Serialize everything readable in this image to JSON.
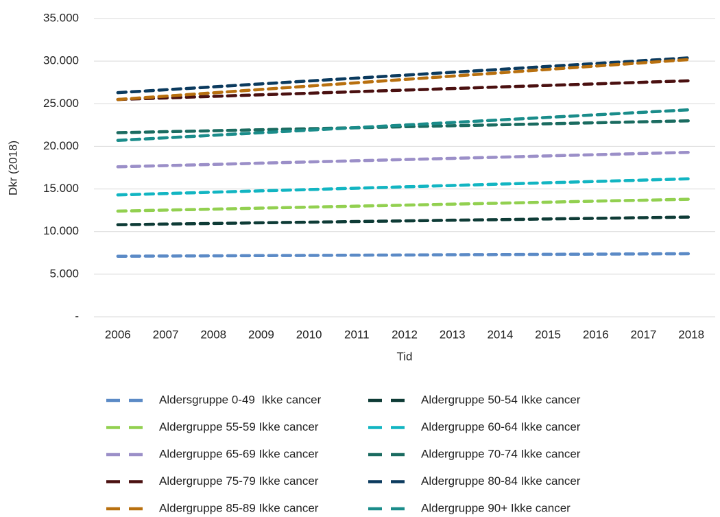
{
  "chart_data": {
    "type": "line",
    "x_label": "Tid",
    "y_label": "Dkr (2018)",
    "categories": [
      "2006",
      "2007",
      "2008",
      "2009",
      "2010",
      "2011",
      "2012",
      "2013",
      "2014",
      "2015",
      "2016",
      "2017",
      "2018"
    ],
    "ylim": [
      0,
      35000
    ],
    "yticks": [
      {
        "value": 0,
        "label": "-"
      },
      {
        "value": 5000,
        "label": "5.000"
      },
      {
        "value": 10000,
        "label": "10.000"
      },
      {
        "value": 15000,
        "label": "15.000"
      },
      {
        "value": 20000,
        "label": "20.000"
      },
      {
        "value": 25000,
        "label": "25.000"
      },
      {
        "value": 30000,
        "label": "30.000"
      },
      {
        "value": 35000,
        "label": "35.000"
      }
    ],
    "grid": true,
    "legend": "bottom",
    "line_style": "dashed",
    "series": [
      {
        "name": "Aldersgruppe 0-49  Ikke cancer",
        "color": "#5b8ac6",
        "values": [
          7100,
          7130,
          7150,
          7180,
          7200,
          7230,
          7250,
          7280,
          7300,
          7330,
          7350,
          7380,
          7400
        ]
      },
      {
        "name": "Aldergruppe 50-54 Ikke cancer",
        "color": "#0e3b36",
        "values": [
          10800,
          10880,
          10950,
          11030,
          11100,
          11180,
          11250,
          11330,
          11400,
          11480,
          11550,
          11630,
          11700
        ]
      },
      {
        "name": "Aldergruppe 55-59 Ikke cancer",
        "color": "#92d050",
        "values": [
          12400,
          12520,
          12630,
          12750,
          12870,
          12980,
          13100,
          13220,
          13330,
          13450,
          13570,
          13680,
          13800
        ]
      },
      {
        "name": "Aldergruppe 60-64 Ikke cancer",
        "color": "#12b5c2",
        "values": [
          14300,
          14460,
          14620,
          14780,
          14930,
          15090,
          15250,
          15410,
          15570,
          15730,
          15880,
          16040,
          16200
        ]
      },
      {
        "name": "Aldergruppe 65-69 Ikke cancer",
        "color": "#9b8fc8",
        "values": [
          17600,
          17740,
          17880,
          18030,
          18170,
          18310,
          18450,
          18590,
          18730,
          18880,
          19020,
          19160,
          19300
        ]
      },
      {
        "name": "Aldergruppe 70-74 Ikke cancer",
        "color": "#1a6b60",
        "values": [
          21600,
          21720,
          21830,
          21950,
          22070,
          22180,
          22300,
          22420,
          22530,
          22650,
          22770,
          22880,
          23000
        ]
      },
      {
        "name": "Aldergruppe 75-79 Ikke cancer",
        "color": "#4a1010",
        "values": [
          25500,
          25680,
          25870,
          26050,
          26230,
          26420,
          26600,
          26780,
          26970,
          27150,
          27330,
          27520,
          27700
        ]
      },
      {
        "name": "Aldergruppe 80-84 Ikke cancer",
        "color": "#0b3a5e",
        "values": [
          26300,
          26640,
          26980,
          27330,
          27670,
          28010,
          28350,
          28690,
          29030,
          29380,
          29720,
          30060,
          30400
        ]
      },
      {
        "name": "Aldergruppe 85-89 Ikke cancer",
        "color": "#b8700f",
        "values": [
          25500,
          25890,
          26280,
          26680,
          27070,
          27460,
          27850,
          28240,
          28630,
          29030,
          29420,
          29810,
          30200
        ]
      },
      {
        "name": "Aldergruppe 90+ Ikke cancer",
        "color": "#1a8c8a",
        "values": [
          20700,
          21000,
          21300,
          21600,
          21900,
          22200,
          22500,
          22800,
          23100,
          23400,
          23700,
          24000,
          24300
        ]
      }
    ]
  }
}
